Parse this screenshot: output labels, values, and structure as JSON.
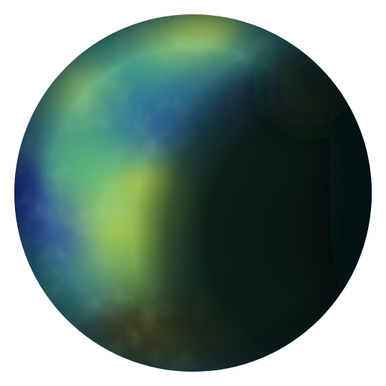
{
  "scene": {
    "background": "#ffffff",
    "subject": "planet-sphere"
  },
  "palette": {
    "ocean_deep": "#1d2f95",
    "ocean_mid": "#2b5fa0",
    "teal": "#2f8f86",
    "green": "#5fbf6e",
    "yellow_green": "#b9df5c",
    "shadow": "#0c1c14",
    "shadow_edge": "#05101a",
    "land_brown": "#3a3a1a"
  }
}
